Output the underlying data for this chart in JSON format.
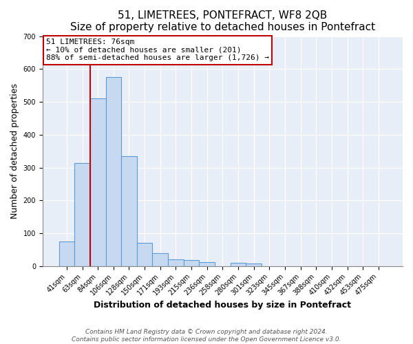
{
  "title": "51, LIMETREES, PONTEFRACT, WF8 2QB",
  "subtitle": "Size of property relative to detached houses in Pontefract",
  "xlabel": "Distribution of detached houses by size in Pontefract",
  "ylabel": "Number of detached properties",
  "bar_labels": [
    "41sqm",
    "63sqm",
    "84sqm",
    "106sqm",
    "128sqm",
    "150sqm",
    "171sqm",
    "193sqm",
    "215sqm",
    "236sqm",
    "258sqm",
    "280sqm",
    "301sqm",
    "323sqm",
    "345sqm",
    "367sqm",
    "388sqm",
    "410sqm",
    "432sqm",
    "453sqm",
    "475sqm"
  ],
  "bar_values": [
    75,
    313,
    510,
    575,
    335,
    70,
    40,
    20,
    18,
    12,
    0,
    10,
    8,
    0,
    0,
    0,
    0,
    0,
    0,
    0,
    0
  ],
  "bar_color": "#c6d9f0",
  "bar_edge_color": "#5b9bd5",
  "vline_color": "#c00000",
  "annotation_line1": "51 LIMETREES: 76sqm",
  "annotation_line2": "← 10% of detached houses are smaller (201)",
  "annotation_line3": "88% of semi-detached houses are larger (1,726) →",
  "box_edge_color": "#c00000",
  "ylim": [
    0,
    700
  ],
  "yticks": [
    0,
    100,
    200,
    300,
    400,
    500,
    600,
    700
  ],
  "footer1": "Contains HM Land Registry data © Crown copyright and database right 2024.",
  "footer2": "Contains public sector information licensed under the Open Government Licence v3.0.",
  "title_fontsize": 11,
  "axis_label_fontsize": 9,
  "tick_fontsize": 7,
  "annotation_fontsize": 8,
  "plot_bg_color": "#e8eef7",
  "grid_color": "#ffffff",
  "footer_fontsize": 6.5
}
